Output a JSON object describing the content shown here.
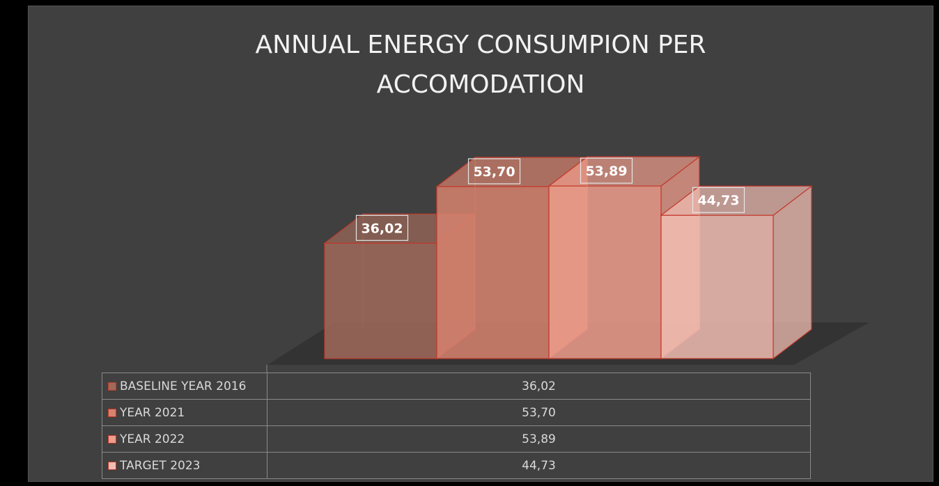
{
  "chart_data": {
    "type": "bar3d",
    "title": "ANNUAL ENERGY CONSUMPION PER ACCOMODATION",
    "categories": [
      null
    ],
    "series": [
      {
        "name": "BASELINE YEAR 2016",
        "color": "#a06a5a",
        "values": [
          36.02
        ],
        "value_labels": [
          "36,02"
        ]
      },
      {
        "name": "YEAR 2021",
        "color": "#d7836e",
        "values": [
          53.7
        ],
        "value_labels": [
          "53,70"
        ]
      },
      {
        "name": "YEAR 2022",
        "color": "#ef9d8c",
        "values": [
          53.89
        ],
        "value_labels": [
          "53,89"
        ]
      },
      {
        "name": "TARGET 2023",
        "color": "#f2bdb3",
        "values": [
          44.73
        ],
        "value_labels": [
          "44,73"
        ]
      }
    ]
  }
}
